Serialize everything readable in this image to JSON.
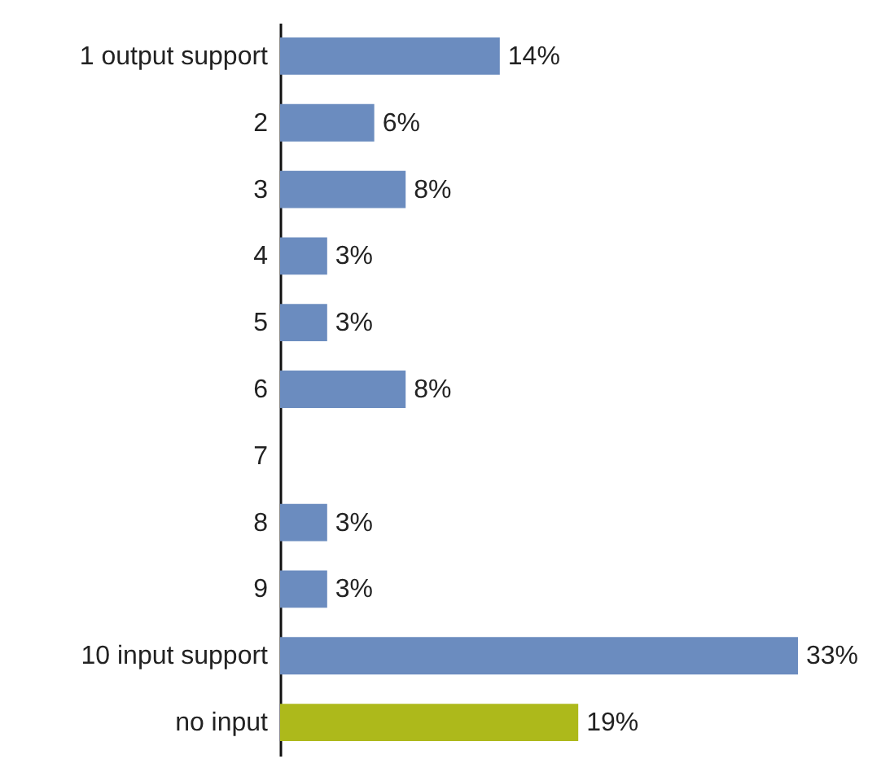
{
  "chart_data": {
    "type": "bar",
    "orientation": "horizontal",
    "categories": [
      "1 output support",
      "2",
      "3",
      "4",
      "5",
      "6",
      "7",
      "8",
      "9",
      "10 input support",
      "no input"
    ],
    "values": [
      14,
      6,
      8,
      3,
      3,
      8,
      null,
      3,
      3,
      33,
      19
    ],
    "colors": [
      "#6b8cbf",
      "#6b8cbf",
      "#6b8cbf",
      "#6b8cbf",
      "#6b8cbf",
      "#6b8cbf",
      "#6b8cbf",
      "#6b8cbf",
      "#6b8cbf",
      "#6b8cbf",
      "#adb91b"
    ],
    "value_labels": [
      "14%",
      "6%",
      "8%",
      "3%",
      "3%",
      "8%",
      null,
      "3%",
      "3%",
      "33%",
      "19%"
    ]
  }
}
